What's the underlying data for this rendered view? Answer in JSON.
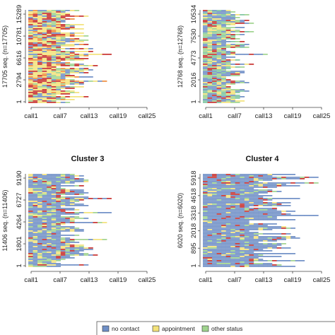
{
  "colors": {
    "no_contact": "#6f8fc6",
    "appointment": "#f3e27a",
    "other_status": "#9fd38e",
    "red": "#c8302e",
    "orange": "#ef8c3b",
    "teal": "#7cc4a0",
    "axis": "#444444"
  },
  "chart_data": [
    {
      "type": "heatmap",
      "panel": "top-left",
      "title": "",
      "ylabel": "17705 seq. (n=17705)",
      "yticks": [
        "1",
        "2794",
        "6616",
        "10781",
        "15289"
      ],
      "xticks": [
        "call1",
        "call7",
        "call13",
        "call19",
        "call25"
      ],
      "n_sequences": 17705,
      "max_length": 25,
      "dominant_state": "appointment/red mix"
    },
    {
      "type": "heatmap",
      "panel": "top-right",
      "title": "",
      "ylabel": "12768 seq. (n=12768)",
      "yticks": [
        "1",
        "2016",
        "4773",
        "7530",
        "10534"
      ],
      "xticks": [
        "call1",
        "call7",
        "call13",
        "call19",
        "call25"
      ],
      "n_sequences": 12768,
      "max_length": 25,
      "dominant_state": "mixed"
    },
    {
      "type": "heatmap",
      "panel": "bottom-left",
      "title": "Cluster 3",
      "ylabel": "11406 seq. (n=11406)",
      "yticks": [
        "1",
        "1801",
        "4264",
        "6727",
        "9190"
      ],
      "xticks": [
        "call1",
        "call7",
        "call13",
        "call19",
        "call25"
      ],
      "n_sequences": 11406,
      "max_length": 25,
      "dominant_state": "no contact"
    },
    {
      "type": "heatmap",
      "panel": "bottom-right",
      "title": "Cluster 4",
      "ylabel": "6020 seq. (n=6020)",
      "yticks": [
        "1",
        "895",
        "2018",
        "3318",
        "4618",
        "5918"
      ],
      "xticks": [
        "call1",
        "call7",
        "call13",
        "call19",
        "call25"
      ],
      "n_sequences": 6020,
      "max_length": 25,
      "dominant_state": "no contact"
    }
  ],
  "legend": {
    "placement": "bottom",
    "items": [
      {
        "label": "no contact",
        "color_key": "no_contact"
      },
      {
        "label": "appointment",
        "color_key": "appointment"
      },
      {
        "label": "other status",
        "color_key": "other_status"
      }
    ]
  }
}
